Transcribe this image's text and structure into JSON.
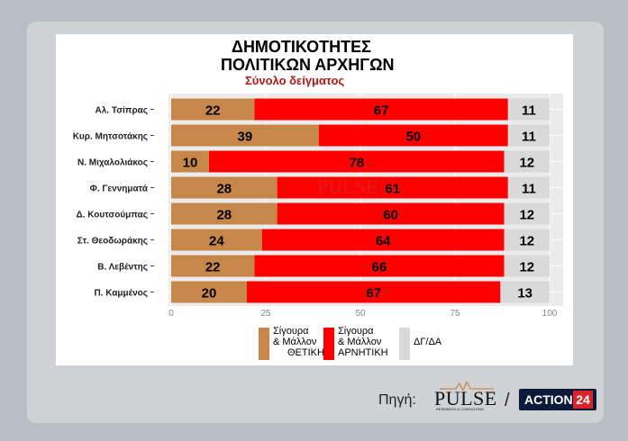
{
  "title_line1": "ΔΗΜΟΤΙΚΟΤΗΤΕΣ",
  "title_line2": "ΠΟΛΙΤΙΚΩΝ ΑΡΧΗΓΩΝ",
  "subtitle": "Σύνολο δείγματος",
  "colors": {
    "positive": "#c8874a",
    "negative": "#fe0000",
    "neutral": "#d9d9d9",
    "subtitle": "#b01818",
    "background": "#b9bec3"
  },
  "chart_data": {
    "type": "bar",
    "orientation": "horizontal",
    "stacked": true,
    "categories": [
      "Αλ. Τσίπρας",
      "Κυρ. Μητσοτάκης",
      "Ν. Μιχαλολιάκος",
      "Φ. Γεννηματά",
      "Δ. Κουτσούμπας",
      "Στ. Θεοδωράκης",
      "Β. Λεβέντης",
      "Π. Καμμένος"
    ],
    "series": [
      {
        "name": "Σίγουρα & Μάλλον ΘΕΤΙΚΗ",
        "values": [
          22,
          39,
          10,
          28,
          28,
          24,
          22,
          20
        ]
      },
      {
        "name": "Σίγουρα & Μάλλον ΑΡΝΗΤΙΚΗ",
        "values": [
          67,
          50,
          78,
          61,
          60,
          64,
          66,
          67
        ]
      },
      {
        "name": "ΔΓ/ΔΑ",
        "values": [
          11,
          11,
          12,
          11,
          12,
          12,
          12,
          13
        ]
      }
    ],
    "xlim": [
      0,
      100
    ],
    "xticks": [
      0,
      25,
      50,
      75,
      100
    ],
    "legend_position": "bottom"
  },
  "legend": [
    {
      "lines": [
        "Σίγουρα",
        "& Μάλλον",
        "ΘΕΤΙΚΗ"
      ]
    },
    {
      "lines": [
        "Σίγουρα",
        "& Μάλλον",
        "ΑΡΝΗΤΙΚΗ"
      ]
    },
    {
      "lines": [
        "ΔΓ/ΔΑ"
      ]
    }
  ],
  "footer": {
    "source_label": "Πηγή:",
    "pulse_logo": "PULSE",
    "pulse_sub": "RESEARCH & CONSULTING",
    "slash": "/",
    "action_text": "ACTION",
    "action_num": "24"
  }
}
